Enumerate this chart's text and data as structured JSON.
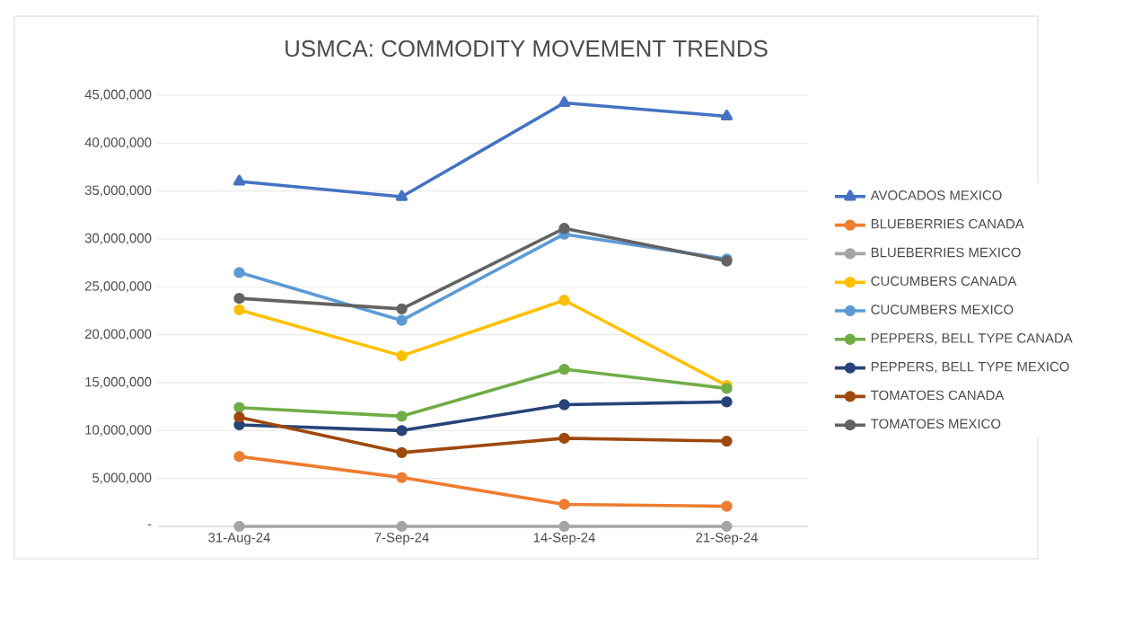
{
  "chart_data": {
    "type": "line",
    "title": "USMCA: COMMODITY MOVEMENT TRENDS",
    "categories": [
      "31-Aug-24",
      "7-Sep-24",
      "14-Sep-24",
      "21-Sep-24"
    ],
    "series": [
      {
        "name": "AVOCADOS MEXICO",
        "color": "#4472c4",
        "marker": "triangle",
        "values": [
          36000000,
          34400000,
          44200000,
          42800000
        ]
      },
      {
        "name": "BLUEBERRIES CANADA",
        "color": "#ed7d31",
        "marker": "circle",
        "values": [
          7300000,
          5100000,
          2300000,
          2100000
        ]
      },
      {
        "name": "BLUEBERRIES MEXICO",
        "color": "#a5a5a5",
        "marker": "circle",
        "values": [
          0,
          0,
          0,
          0
        ]
      },
      {
        "name": "CUCUMBERS CANADA",
        "color": "#ffc000",
        "marker": "circle",
        "values": [
          22600000,
          17800000,
          23600000,
          14700000
        ]
      },
      {
        "name": "CUCUMBERS MEXICO",
        "color": "#5b9bd5",
        "marker": "circle",
        "values": [
          26500000,
          21500000,
          30500000,
          27900000
        ]
      },
      {
        "name": "PEPPERS, BELL TYPE CANADA",
        "color": "#70ad47",
        "marker": "circle",
        "values": [
          12400000,
          11500000,
          16400000,
          14400000
        ]
      },
      {
        "name": "PEPPERS, BELL TYPE MEXICO",
        "color": "#264478",
        "marker": "circle",
        "values": [
          10600000,
          10000000,
          12700000,
          13000000
        ]
      },
      {
        "name": "TOMATOES CANADA",
        "color": "#9e480e",
        "marker": "circle",
        "values": [
          11400000,
          7700000,
          9200000,
          8900000
        ]
      },
      {
        "name": "TOMATOES MEXICO",
        "color": "#636363",
        "marker": "circle",
        "values": [
          23800000,
          22700000,
          31100000,
          27700000
        ]
      }
    ],
    "ylim": [
      0,
      45000000
    ],
    "yticks": [
      {
        "value": 0,
        "label": "-"
      },
      {
        "value": 5000000,
        "label": "5,000,000"
      },
      {
        "value": 10000000,
        "label": "10,000,000"
      },
      {
        "value": 15000000,
        "label": "15,000,000"
      },
      {
        "value": 20000000,
        "label": "20,000,000"
      },
      {
        "value": 25000000,
        "label": "25,000,000"
      },
      {
        "value": 30000000,
        "label": "30,000,000"
      },
      {
        "value": 35000000,
        "label": "35,000,000"
      },
      {
        "value": 40000000,
        "label": "40,000,000"
      },
      {
        "value": 45000000,
        "label": "45,000,000"
      }
    ],
    "grid": "y",
    "legend": "right",
    "line_style": "solid"
  }
}
